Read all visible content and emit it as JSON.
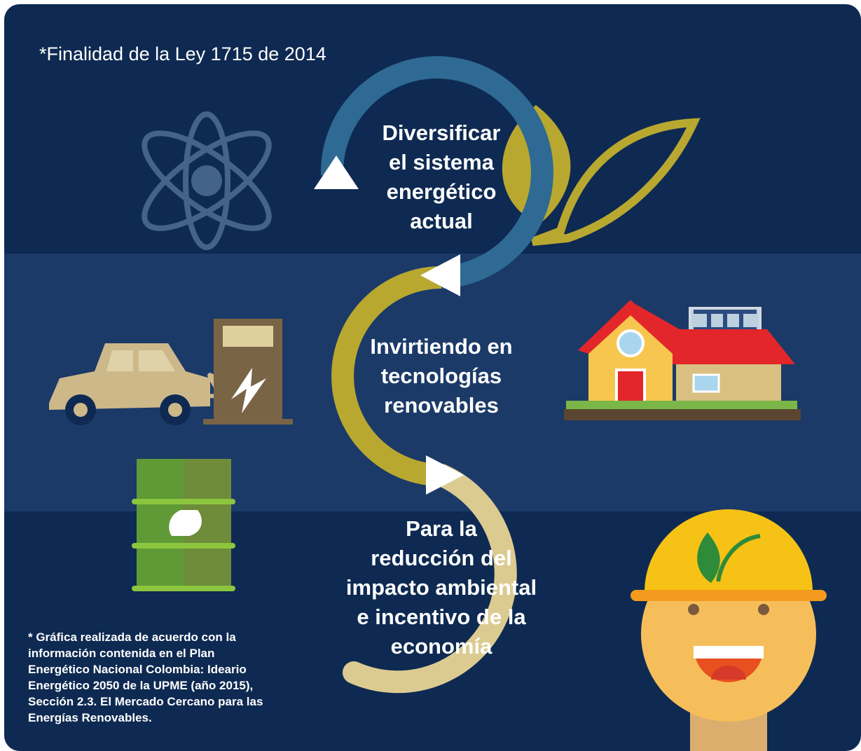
{
  "title": "*Finalidad de la Ley 1715 de 2014",
  "steps": [
    {
      "lines": [
        "Diversificar",
        "el sistema",
        "energético",
        "actual"
      ]
    },
    {
      "lines": [
        "Invirtiendo en",
        "tecnologías",
        "renovables"
      ]
    },
    {
      "lines": [
        "Para la",
        "reducción del",
        "impacto ambiental",
        "e incentivo de la",
        "economía"
      ]
    }
  ],
  "footnote": [
    "* Gráfica realizada de acuerdo con la",
    "información contenida en el Plan",
    "Energético Nacional Colombia: Ideario",
    "Energético 2050 de la UPME (año 2015),",
    "Sección 2.3.  El Mercado Cercano para las",
    "Energías Renovables."
  ]
}
